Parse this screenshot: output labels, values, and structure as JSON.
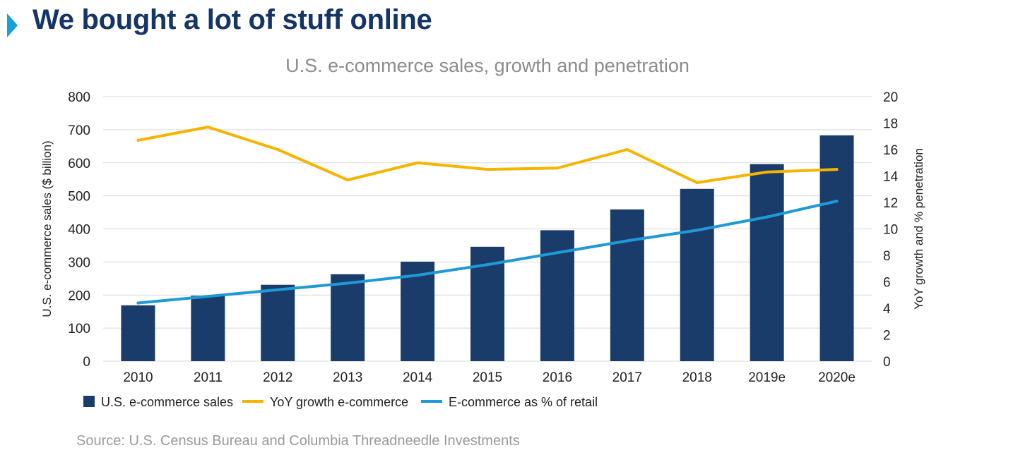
{
  "header": {
    "title": "We bought a lot of stuff online"
  },
  "source": "Source: U.S. Census Bureau and Columbia Threadneedle Investments",
  "colors": {
    "title": "#153566",
    "marker": "#19a0dc",
    "bars": "#1a3c6b",
    "growth_line": "#f5b400",
    "penetration_line": "#1f9ad6",
    "chart_title": "#8c8c8c",
    "grid": "#d9d9d9"
  },
  "chart_data": {
    "type": "bar",
    "title": "U.S. e-commerce sales, growth and penetration",
    "categories": [
      "2010",
      "2011",
      "2012",
      "2013",
      "2014",
      "2015",
      "2016",
      "2017",
      "2018",
      "2019e",
      "2020e"
    ],
    "ylabel": "U.S. e-commerce sales ($ billion)",
    "y2label": "YoY growth and % penetration",
    "ylim": [
      0,
      800
    ],
    "yticks": [
      "0",
      "100",
      "200",
      "300",
      "400",
      "500",
      "600",
      "700",
      "800"
    ],
    "y2lim": [
      0,
      20
    ],
    "y2ticks": [
      "0",
      "2",
      "4",
      "6",
      "8",
      "10",
      "12",
      "14",
      "16",
      "18",
      "20"
    ],
    "grid": true,
    "legend_position": "bottom-left",
    "series": [
      {
        "name": "U.S. e-commerce sales",
        "type": "bar",
        "axis": "left",
        "values": [
          169,
          198,
          231,
          263,
          301,
          346,
          396,
          459,
          521,
          596,
          683
        ]
      },
      {
        "name": "YoY growth e-commerce",
        "type": "line",
        "axis": "right",
        "values": [
          16.7,
          17.7,
          16.0,
          13.7,
          15.0,
          14.5,
          14.6,
          16.0,
          13.5,
          14.3,
          14.5
        ]
      },
      {
        "name": "E-commerce as % of retail",
        "type": "line",
        "axis": "right",
        "values": [
          4.4,
          4.9,
          5.4,
          5.9,
          6.5,
          7.3,
          8.2,
          9.1,
          9.9,
          10.9,
          12.1
        ]
      }
    ]
  }
}
